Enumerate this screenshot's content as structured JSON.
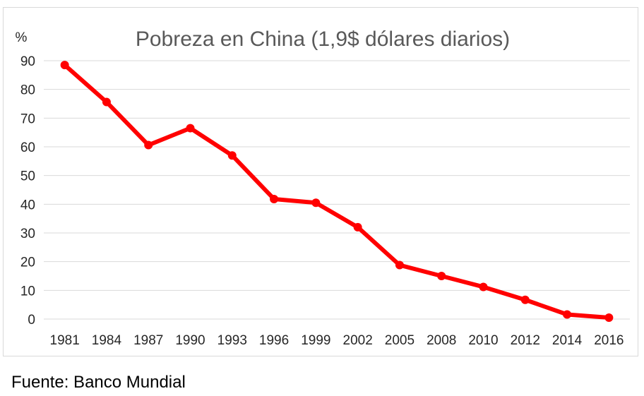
{
  "chart_data": {
    "type": "line",
    "title": "Pobreza en China (1,9$ dólares diarios)",
    "y_unit_label": "%",
    "xlabel": "",
    "ylabel": "",
    "categories": [
      "1981",
      "1984",
      "1987",
      "1990",
      "1993",
      "1996",
      "1999",
      "2002",
      "2005",
      "2008",
      "2010",
      "2012",
      "2014",
      "2016"
    ],
    "series": [
      {
        "values": [
          88.5,
          75.6,
          60.6,
          66.5,
          57.0,
          41.8,
          40.5,
          32.0,
          18.8,
          15.0,
          11.2,
          6.7,
          1.6,
          0.5
        ]
      }
    ],
    "ylim": [
      0,
      90
    ],
    "yticks": [
      0,
      10,
      20,
      30,
      40,
      50,
      60,
      70,
      80,
      90
    ],
    "grid": true,
    "legend": "none",
    "line_color": "#ff0000",
    "grid_color": "#d9d9d9"
  },
  "footer": {
    "source": "Fuente: Banco Mundial"
  }
}
